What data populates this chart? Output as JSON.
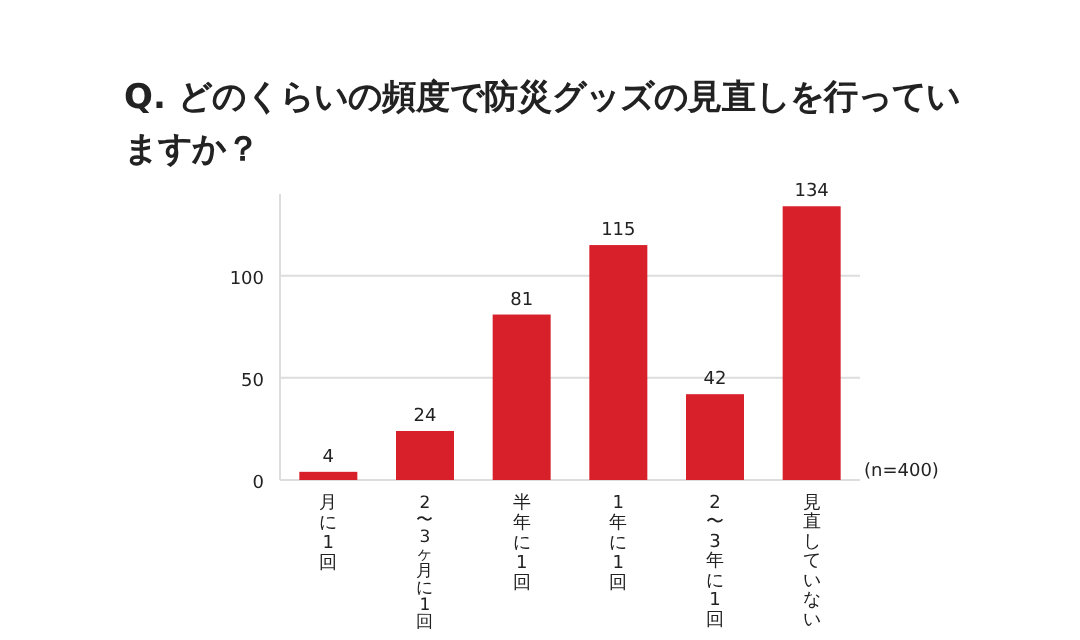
{
  "chart_data": {
    "type": "bar",
    "title": "Q. どのくらいの頻度で防災グッズの見直しを行っていますか？",
    "categories": [
      "月に1回",
      "2〜3ヶ月に1回",
      "半年に1回",
      "1年に1回",
      "2〜3年に1回",
      "見直していない"
    ],
    "values": [
      4,
      24,
      81,
      115,
      42,
      134
    ],
    "color": "#d7202a",
    "ylim": [
      0,
      140
    ],
    "yticks": [
      0,
      50,
      100
    ],
    "grid": "y",
    "data_labels": true,
    "annotations": [
      "(n=400)"
    ]
  }
}
